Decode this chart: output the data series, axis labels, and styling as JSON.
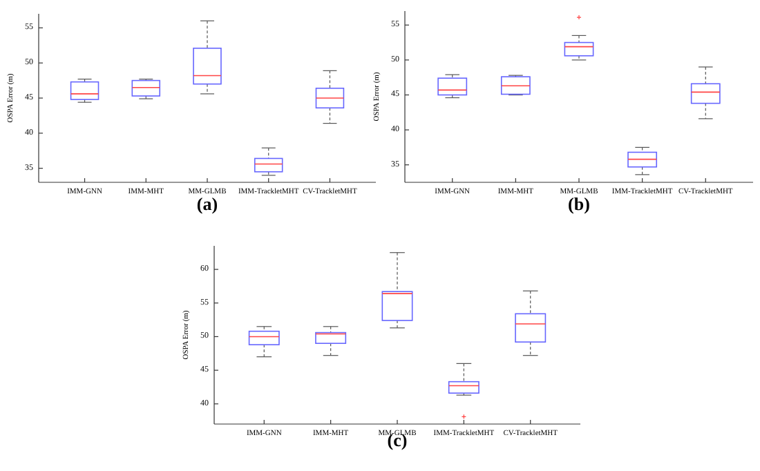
{
  "chart_data": [
    {
      "type": "box",
      "ylabel": "OSPA Error (m)",
      "annotations": [
        "(a)"
      ],
      "color": "#6666ff",
      "categories": [
        "IMM-GNN",
        "IMM-MHT",
        "MM-GLMB",
        "IMM-TrackletMHT",
        "CV-TrackletMHT"
      ],
      "ylim": [
        33,
        57
      ],
      "yticks": [
        35,
        40,
        45,
        50,
        55
      ],
      "boxes": [
        {
          "low": 44.4,
          "q1": 44.8,
          "median": 45.6,
          "q3": 47.3,
          "high": 47.7
        },
        {
          "low": 44.9,
          "q1": 45.3,
          "median": 46.5,
          "q3": 47.5,
          "high": 47.7
        },
        {
          "low": 45.6,
          "q1": 47.0,
          "median": 48.2,
          "q3": 52.1,
          "high": 56.0
        },
        {
          "low": 34.0,
          "q1": 34.5,
          "median": 35.6,
          "q3": 36.4,
          "high": 37.9
        },
        {
          "low": 41.4,
          "q1": 43.6,
          "median": 45.0,
          "q3": 46.4,
          "high": 48.9
        }
      ]
    },
    {
      "type": "box",
      "ylabel": "OSPA Error (m)",
      "annotations": [
        "(b)"
      ],
      "color": "#6666ff",
      "categories": [
        "IMM-GNN",
        "IMM-MHT",
        "MM-GLMB",
        "IMM-TrackletMHT",
        "CV-TrackletMHT"
      ],
      "ylim": [
        32.5,
        57
      ],
      "yticks": [
        35,
        40,
        45,
        50,
        55
      ],
      "boxes": [
        {
          "low": 44.6,
          "q1": 45.0,
          "median": 45.7,
          "q3": 47.4,
          "high": 47.9
        },
        {
          "low": 45.0,
          "q1": 45.1,
          "median": 46.3,
          "q3": 47.6,
          "high": 47.8
        },
        {
          "low": 50.0,
          "q1": 50.6,
          "median": 51.9,
          "q3": 52.5,
          "high": 53.5,
          "outliers": [
            56.1
          ]
        },
        {
          "low": 33.6,
          "q1": 34.7,
          "median": 35.8,
          "q3": 36.8,
          "high": 37.5
        },
        {
          "low": 41.6,
          "q1": 43.8,
          "median": 45.4,
          "q3": 46.6,
          "high": 49.0
        }
      ]
    },
    {
      "type": "box",
      "ylabel": "OSPA Error (m)",
      "annotations": [
        "(c)"
      ],
      "color": "#6666ff",
      "categories": [
        "IMM-GNN",
        "IMM-MHT",
        "MM-GLMB",
        "IMM-TrackletMHT",
        "CV-TrackletMHT"
      ],
      "ylim": [
        37,
        63.5
      ],
      "yticks": [
        40,
        45,
        50,
        55,
        60
      ],
      "boxes": [
        {
          "low": 47.0,
          "q1": 48.8,
          "median": 50.0,
          "q3": 50.8,
          "high": 51.5
        },
        {
          "low": 47.2,
          "q1": 49.0,
          "median": 50.4,
          "q3": 50.6,
          "high": 51.5
        },
        {
          "low": 51.3,
          "q1": 52.4,
          "median": 56.4,
          "q3": 56.7,
          "high": 62.5
        },
        {
          "low": 41.3,
          "q1": 41.6,
          "median": 42.7,
          "q3": 43.3,
          "high": 46.0,
          "outliers": [
            38.1
          ]
        },
        {
          "low": 47.2,
          "q1": 49.2,
          "median": 51.9,
          "q3": 53.4,
          "high": 56.8
        }
      ]
    }
  ]
}
